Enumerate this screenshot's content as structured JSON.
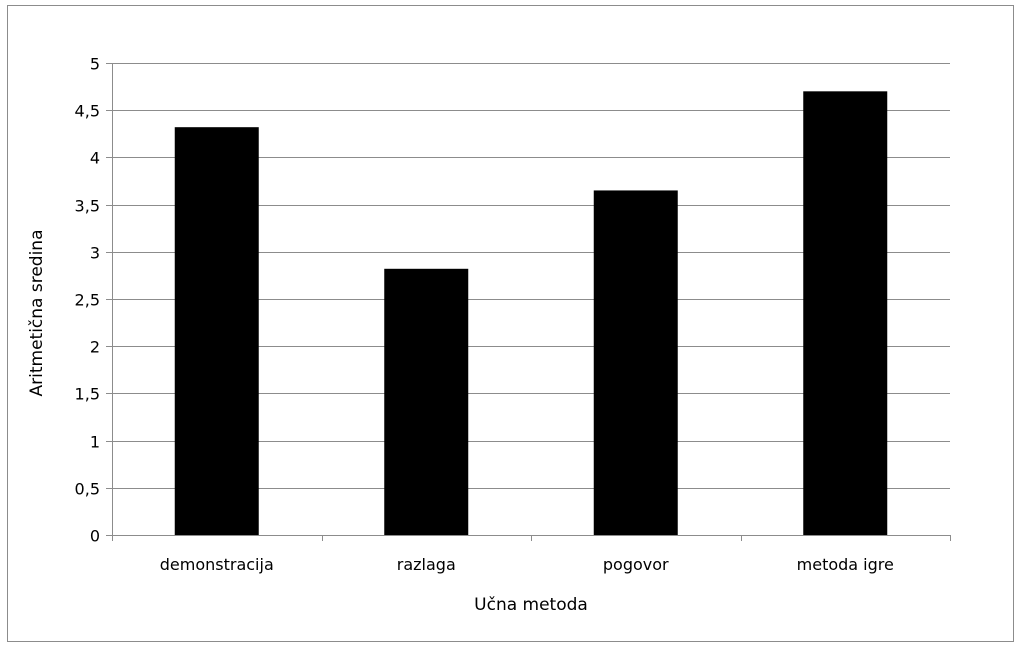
{
  "chart_data": {
    "type": "bar",
    "title": "",
    "xlabel": "Učna metoda",
    "ylabel": "Aritmetična sredina",
    "categories": [
      "demonstracija",
      "razlaga",
      "pogovor",
      "metoda igre"
    ],
    "values": [
      4.32,
      2.82,
      3.65,
      4.7
    ],
    "ylim": [
      0,
      5
    ],
    "yticks": [
      "0",
      "0,5",
      "1",
      "1,5",
      "2",
      "2,5",
      "3",
      "3,5",
      "4",
      "4,5",
      "5"
    ],
    "grid": true,
    "legend": "none",
    "bar_color": "#000000",
    "grid_color": "#8c8c8c"
  }
}
